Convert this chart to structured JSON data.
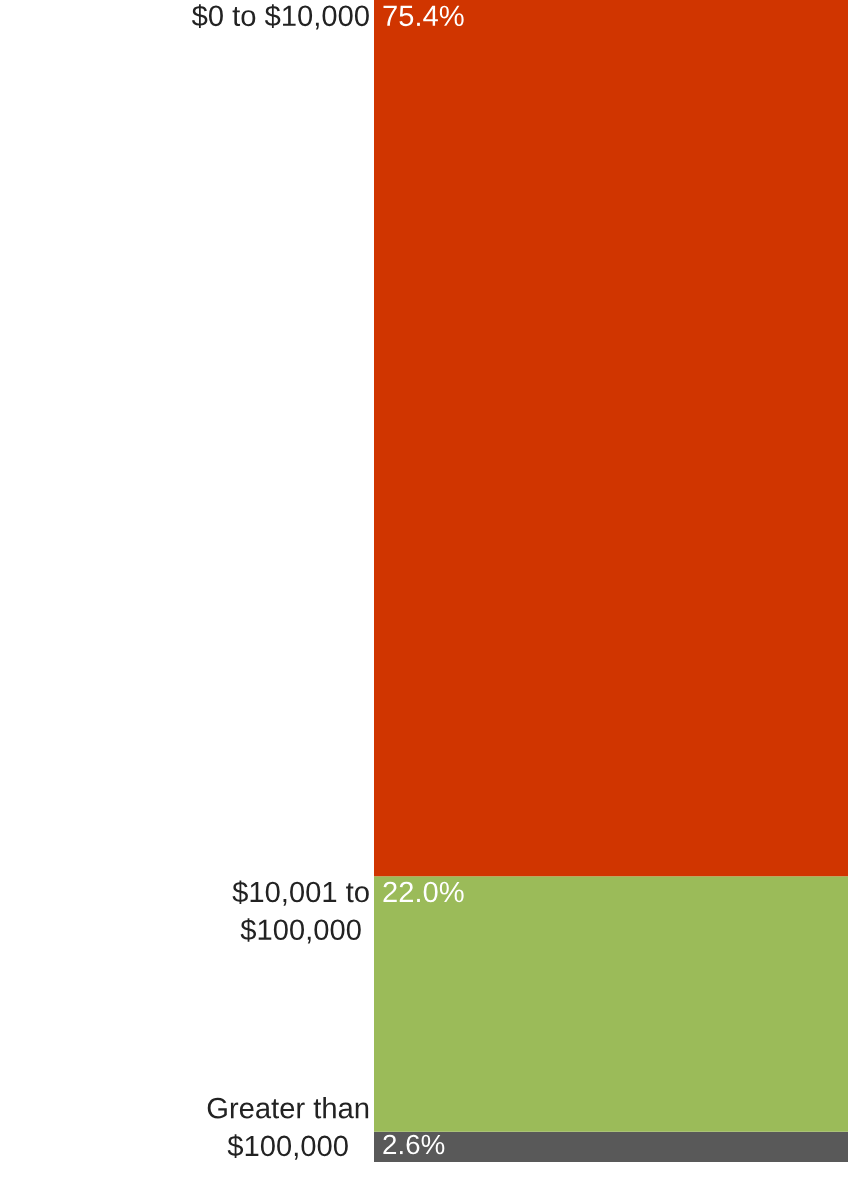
{
  "chart_data": {
    "type": "bar",
    "stacked": true,
    "categories": [
      null
    ],
    "series": [
      {
        "name": "Greater than\n$100,000",
        "color": "#595959",
        "values": [
          2.6
        ],
        "value_labels": [
          "2.6%"
        ]
      },
      {
        "name": "$10,001 to\n$100,000",
        "color": "#9bbb59",
        "values": [
          22.0
        ],
        "value_labels": [
          "22.0%"
        ]
      },
      {
        "name": "$0 to $10,000",
        "color": "#d03500",
        "values": [
          75.4
        ],
        "value_labels": [
          "75.4%"
        ]
      }
    ]
  }
}
